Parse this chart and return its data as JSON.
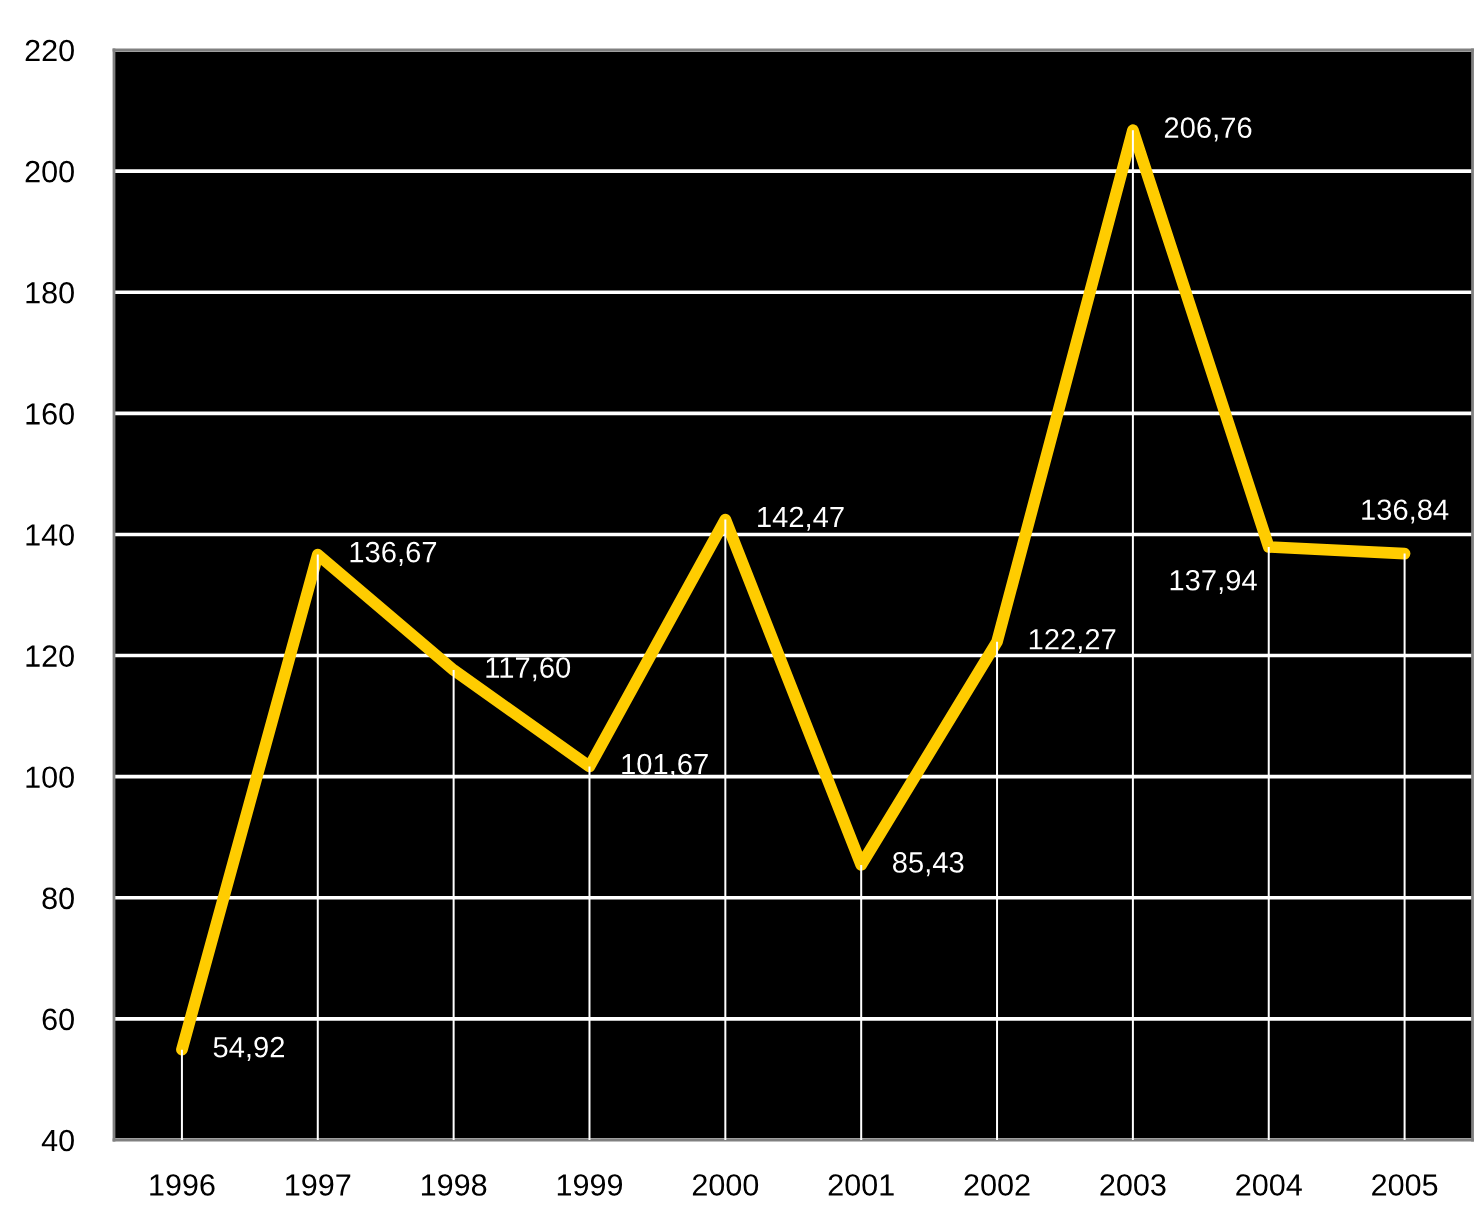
{
  "chart_data": {
    "type": "line",
    "categories": [
      "1996",
      "1997",
      "1998",
      "1999",
      "2000",
      "2001",
      "2002",
      "2003",
      "2004",
      "2005"
    ],
    "series": [
      {
        "color": "#ffcc00",
        "values": [
          54.92,
          136.67,
          117.6,
          101.67,
          142.47,
          85.43,
          122.27,
          206.76,
          137.94,
          136.84
        ],
        "value_labels": [
          "54,92",
          "136,67",
          "117,60",
          "101,67",
          "142,47",
          "85,43",
          "122,27",
          "206,76",
          "137,94",
          "136,84"
        ]
      },
      {
        "type": "bar",
        "color": "#ffffff",
        "values": [
          54.92,
          136.67,
          117.6,
          101.67,
          142.47,
          85.43,
          122.27,
          206.76,
          137.94,
          136.84
        ]
      }
    ],
    "ylim": [
      40,
      220
    ],
    "yticks": [
      40,
      60,
      80,
      100,
      120,
      140,
      160,
      180,
      200,
      220
    ],
    "grid": "y",
    "marker": "none",
    "line_style": "solid"
  }
}
